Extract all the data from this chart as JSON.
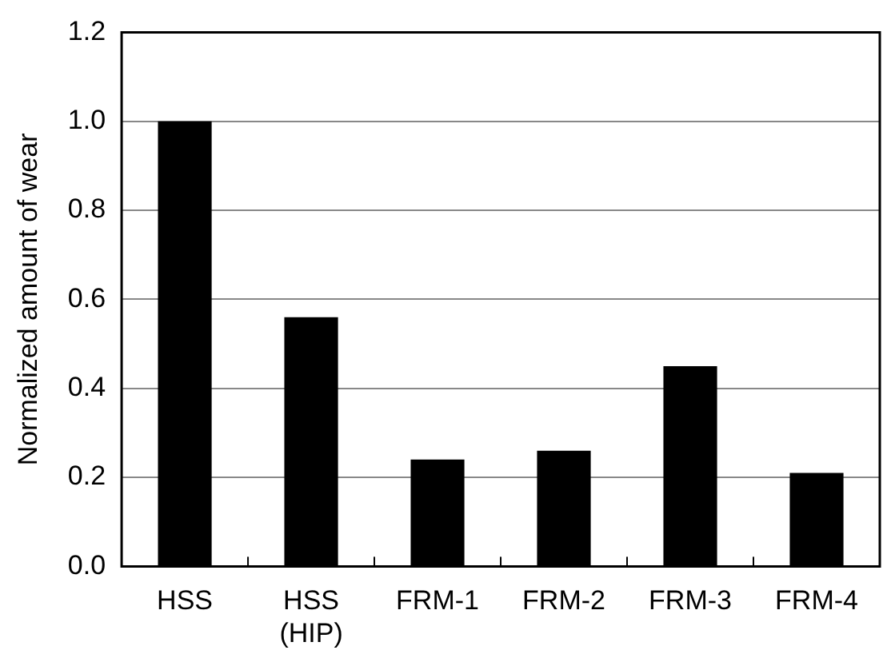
{
  "chart_data": {
    "type": "bar",
    "ylabel": "Normalized amount of wear",
    "categories": [
      "HSS",
      "HSS (HIP)",
      "FRM-1",
      "FRM-2",
      "FRM-3",
      "FRM-4"
    ],
    "values": [
      1.0,
      0.56,
      0.24,
      0.26,
      0.45,
      0.21
    ],
    "color": "#000000",
    "ylim": [
      0,
      1.2
    ],
    "yticks": [
      {
        "value": 0,
        "label": "0.0"
      },
      {
        "value": 0.2,
        "label": "0.2"
      },
      {
        "value": 0.4,
        "label": "0.4"
      },
      {
        "value": 0.6,
        "label": "0.6"
      },
      {
        "value": 0.8,
        "label": "0.8"
      },
      {
        "value": 1,
        "label": "1.0"
      },
      {
        "value": 1.2,
        "label": "1.2"
      }
    ],
    "grid": "y",
    "legend": false
  }
}
